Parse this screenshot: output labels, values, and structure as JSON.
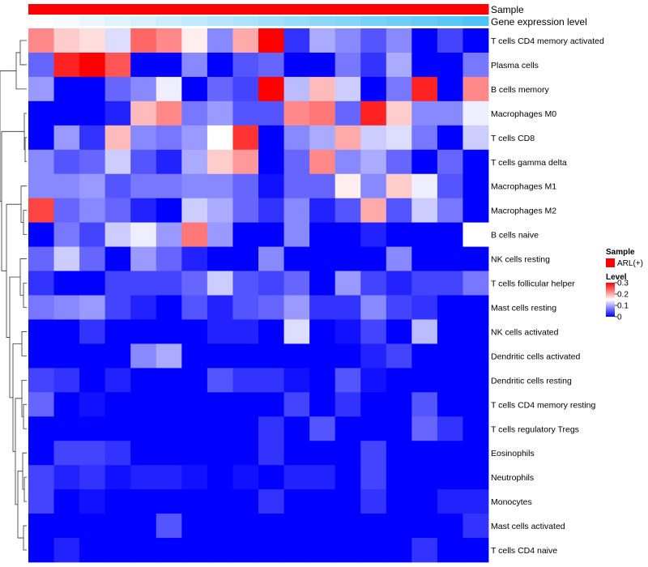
{
  "chart_data": {
    "type": "heatmap",
    "title": "",
    "annotations": [
      {
        "name": "Sample",
        "level": "ARL(+)",
        "color": "#ff0000"
      },
      {
        "name": "Gene expression level",
        "gradient": [
          "#ffffff",
          "#4fc3f7"
        ]
      }
    ],
    "rows": [
      "T cells CD4 memory activated",
      "Plasma cells",
      "B cells memory",
      "Macrophages M0",
      "T cells CD8",
      "T cells gamma delta",
      "Macrophages M1",
      "Macrophages M2",
      "B cells naive",
      "NK cells resting",
      "T cells follicular helper",
      "Mast cells resting",
      "NK cells activated",
      "Dendritic cells activated",
      "Dendritic cells resting",
      "T cells CD4 memory resting",
      "T cells regulatory  Tregs",
      "Eosinophils",
      "Neutrophils",
      "Monocytes",
      "Mast cells activated",
      "T cells CD4 naive"
    ],
    "column_count": 18,
    "values": [
      [
        0.22,
        0.18,
        0.17,
        0.13,
        0.24,
        0.22,
        0.16,
        0.08,
        0.2,
        0.3,
        0.03,
        0.1,
        0.08,
        0.05,
        0.08,
        0.0,
        0.04,
        0.0
      ],
      [
        0.06,
        0.28,
        0.3,
        0.25,
        0.0,
        0.0,
        0.08,
        0.0,
        0.05,
        0.06,
        0.0,
        0.0,
        0.07,
        0.03,
        0.1,
        0.0,
        0.0,
        0.07
      ],
      [
        0.09,
        0.0,
        0.0,
        0.06,
        0.08,
        0.14,
        0.0,
        0.06,
        0.04,
        0.3,
        0.11,
        0.19,
        0.12,
        0.0,
        0.07,
        0.28,
        0.0,
        0.22
      ],
      [
        0.0,
        0.0,
        0.0,
        0.02,
        0.19,
        0.22,
        0.07,
        0.09,
        0.05,
        0.05,
        0.22,
        0.23,
        0.06,
        0.28,
        0.18,
        0.08,
        0.08,
        0.14
      ],
      [
        0.0,
        0.09,
        0.03,
        0.19,
        0.08,
        0.07,
        0.09,
        0.15,
        0.27,
        0.0,
        0.08,
        0.1,
        0.2,
        0.12,
        0.13,
        0.07,
        0.0,
        0.12
      ],
      [
        0.08,
        0.05,
        0.06,
        0.12,
        0.05,
        0.02,
        0.1,
        0.18,
        0.21,
        0.0,
        0.06,
        0.22,
        0.08,
        0.1,
        0.06,
        0.0,
        0.06,
        0.0
      ],
      [
        0.08,
        0.08,
        0.09,
        0.05,
        0.07,
        0.07,
        0.08,
        0.08,
        0.06,
        0.01,
        0.06,
        0.06,
        0.16,
        0.08,
        0.18,
        0.14,
        0.05,
        0.0
      ],
      [
        0.26,
        0.06,
        0.08,
        0.06,
        0.02,
        0.0,
        0.12,
        0.1,
        0.06,
        0.03,
        0.08,
        0.02,
        0.05,
        0.2,
        0.05,
        0.12,
        0.07,
        0.0
      ],
      [
        0.0,
        0.07,
        0.04,
        0.12,
        0.14,
        0.09,
        0.23,
        0.09,
        0.0,
        0.0,
        0.08,
        0.0,
        0.0,
        0.02,
        0.0,
        0.0,
        0.0,
        0.15
      ],
      [
        0.06,
        0.12,
        0.06,
        0.0,
        0.09,
        0.06,
        0.02,
        0.0,
        0.0,
        0.08,
        0.0,
        0.0,
        0.0,
        0.0,
        0.08,
        0.0,
        0.0,
        0.0
      ],
      [
        0.03,
        0.0,
        0.0,
        0.04,
        0.04,
        0.04,
        0.06,
        0.12,
        0.05,
        0.04,
        0.06,
        0.0,
        0.09,
        0.04,
        0.02,
        0.04,
        0.04,
        0.07
      ],
      [
        0.07,
        0.08,
        0.09,
        0.04,
        0.02,
        0.0,
        0.05,
        0.02,
        0.05,
        0.06,
        0.09,
        0.03,
        0.03,
        0.08,
        0.04,
        0.03,
        0.0,
        0.0
      ],
      [
        0.0,
        0.0,
        0.03,
        0.0,
        0.0,
        0.0,
        0.0,
        0.02,
        0.02,
        0.0,
        0.13,
        0.0,
        0.01,
        0.04,
        0.0,
        0.11,
        0.0,
        0.0
      ],
      [
        0.0,
        0.0,
        0.0,
        0.0,
        0.08,
        0.1,
        0.0,
        0.0,
        0.0,
        0.0,
        0.0,
        0.0,
        0.0,
        0.02,
        0.04,
        0.0,
        0.0,
        0.0
      ],
      [
        0.04,
        0.03,
        0.0,
        0.02,
        0.0,
        0.0,
        0.0,
        0.05,
        0.03,
        0.03,
        0.01,
        0.0,
        0.05,
        0.01,
        0.0,
        0.0,
        0.0,
        0.0
      ],
      [
        0.06,
        0.0,
        0.01,
        0.0,
        0.0,
        0.0,
        0.0,
        0.0,
        0.0,
        0.0,
        0.04,
        0.0,
        0.03,
        0.0,
        0.0,
        0.05,
        0.0,
        0.0
      ],
      [
        0.0,
        0.0,
        0.0,
        0.0,
        0.0,
        0.0,
        0.0,
        0.0,
        0.0,
        0.03,
        0.0,
        0.05,
        0.0,
        0.0,
        0.0,
        0.06,
        0.03,
        0.0
      ],
      [
        0.0,
        0.04,
        0.04,
        0.03,
        0.0,
        0.0,
        0.0,
        0.0,
        0.0,
        0.03,
        0.0,
        0.0,
        0.0,
        0.04,
        0.0,
        0.0,
        0.0,
        0.0
      ],
      [
        0.04,
        0.02,
        0.03,
        0.01,
        0.02,
        0.02,
        0.01,
        0.0,
        0.01,
        0.0,
        0.02,
        0.02,
        0.0,
        0.04,
        0.0,
        0.0,
        0.0,
        0.0
      ],
      [
        0.04,
        0.0,
        0.01,
        0.0,
        0.0,
        0.0,
        0.0,
        0.0,
        0.0,
        0.03,
        0.0,
        0.0,
        0.0,
        0.03,
        0.0,
        0.0,
        0.02,
        0.02
      ],
      [
        0.0,
        0.0,
        0.0,
        0.0,
        0.0,
        0.05,
        0.0,
        0.0,
        0.0,
        0.0,
        0.0,
        0.0,
        0.0,
        0.0,
        0.0,
        0.0,
        0.0,
        0.03
      ],
      [
        0.0,
        0.02,
        0.0,
        0.0,
        0.0,
        0.0,
        0.0,
        0.0,
        0.0,
        0.0,
        0.0,
        0.0,
        0.0,
        0.0,
        0.0,
        0.03,
        0.0,
        0.0
      ]
    ],
    "legend": {
      "sample_title": "Sample",
      "sample_entry": "ARL(+)",
      "level_title": "Level",
      "level_range": [
        0,
        0.3
      ],
      "level_ticks": [
        0.3,
        0.2,
        0.1,
        0
      ],
      "level_tick_labels": [
        "0.3",
        "0.2",
        "0.1",
        "0"
      ],
      "colors": [
        "#0000ff",
        "#ffffff",
        "#ff0000"
      ]
    }
  }
}
